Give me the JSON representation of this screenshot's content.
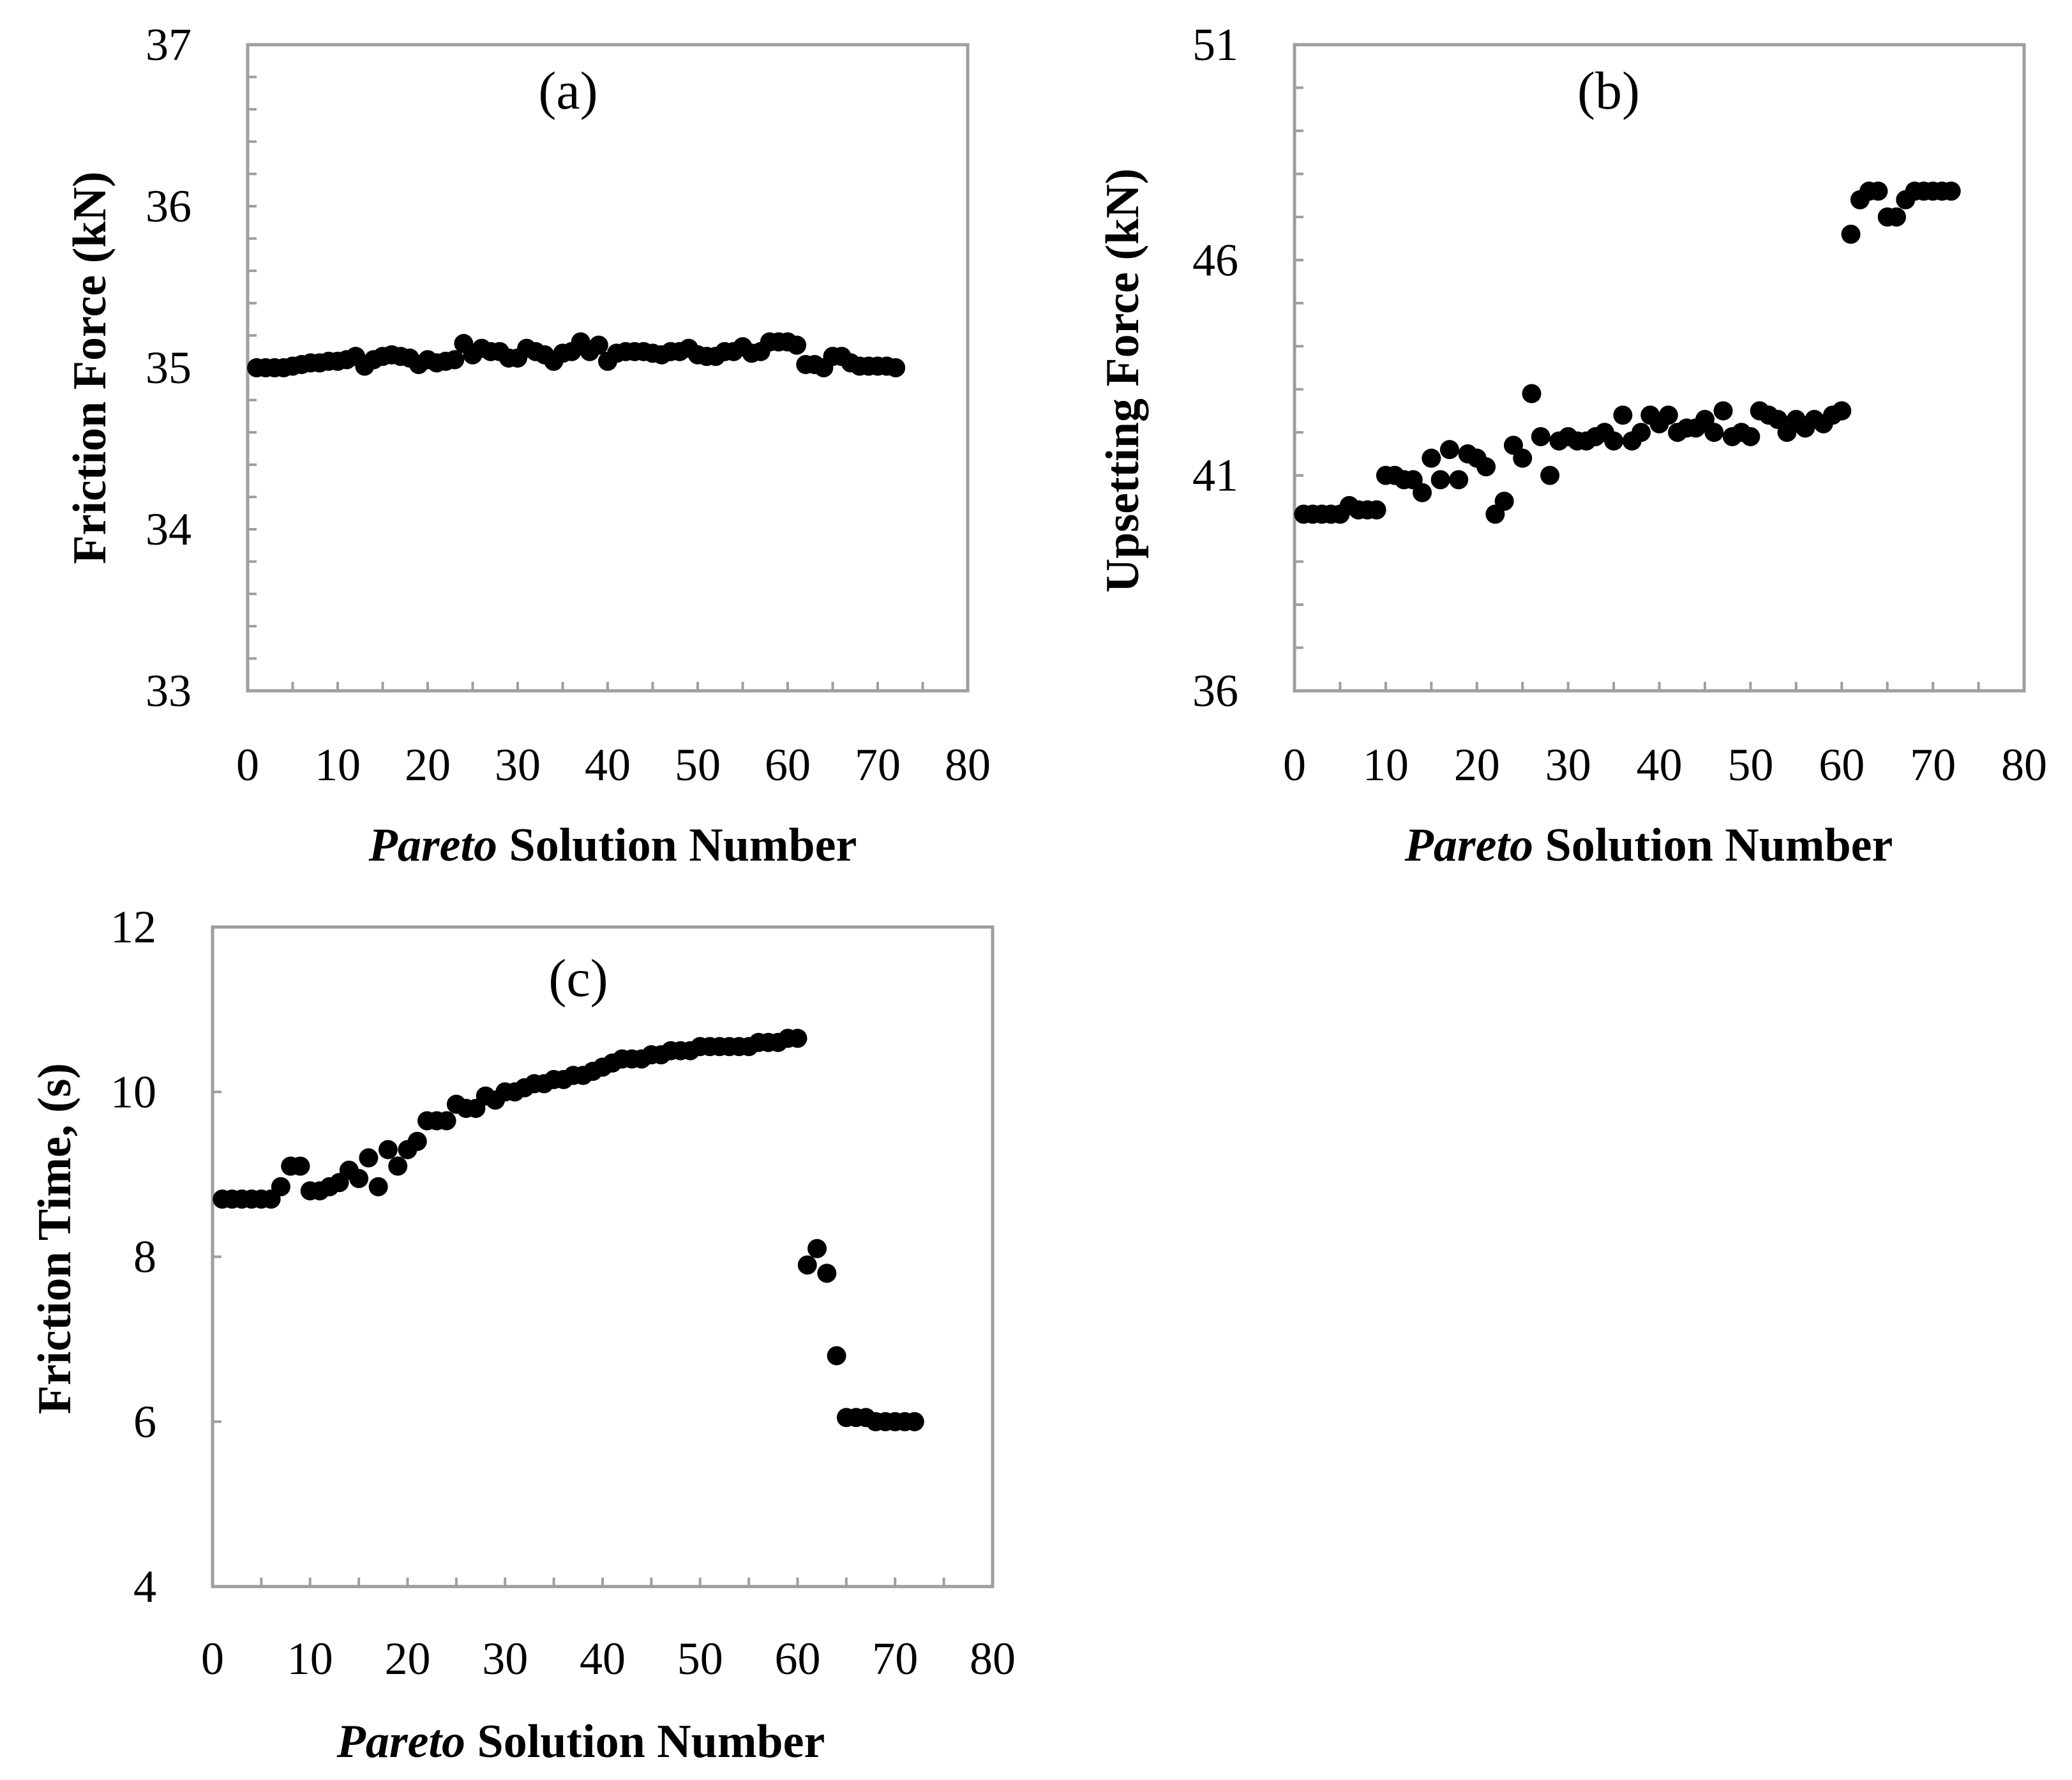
{
  "chart_data": [
    {
      "id": "a",
      "type": "scatter",
      "panel_label": "(a)",
      "ylabel": "Friction Force (kN)",
      "xlabel_italic": "Pareto",
      "xlabel_rest": " Solution Number",
      "xlim": [
        0,
        80
      ],
      "ylim": [
        33,
        37
      ],
      "xticks": [
        0,
        10,
        20,
        30,
        40,
        50,
        60,
        70,
        80
      ],
      "yticks": [
        33,
        34,
        35,
        36,
        37
      ],
      "yminor_step": 0.2,
      "grid": false,
      "x": [
        1,
        2,
        3,
        4,
        5,
        6,
        7,
        8,
        9,
        10,
        11,
        12,
        13,
        14,
        15,
        16,
        17,
        18,
        19,
        20,
        21,
        22,
        23,
        24,
        25,
        26,
        27,
        28,
        29,
        30,
        31,
        32,
        33,
        34,
        35,
        36,
        37,
        38,
        39,
        40,
        41,
        42,
        43,
        44,
        45,
        46,
        47,
        48,
        49,
        50,
        51,
        52,
        53,
        54,
        55,
        56,
        57,
        58,
        59,
        60,
        61,
        62,
        63,
        64,
        65,
        66,
        67,
        68,
        69,
        70,
        71,
        72
      ],
      "y": [
        35.0,
        35.0,
        35.0,
        35.0,
        35.01,
        35.02,
        35.03,
        35.03,
        35.04,
        35.04,
        35.05,
        35.07,
        35.01,
        35.05,
        35.07,
        35.08,
        35.07,
        35.06,
        35.02,
        35.05,
        35.03,
        35.04,
        35.05,
        35.15,
        35.08,
        35.12,
        35.1,
        35.1,
        35.06,
        35.06,
        35.12,
        35.1,
        35.08,
        35.04,
        35.09,
        35.1,
        35.16,
        35.1,
        35.14,
        35.04,
        35.09,
        35.1,
        35.1,
        35.1,
        35.09,
        35.08,
        35.1,
        35.1,
        35.12,
        35.08,
        35.07,
        35.07,
        35.1,
        35.1,
        35.13,
        35.09,
        35.1,
        35.16,
        35.16,
        35.16,
        35.14,
        35.02,
        35.02,
        35.0,
        35.07,
        35.07,
        35.03,
        35.01,
        35.01,
        35.01,
        35.01,
        35.0
      ]
    },
    {
      "id": "b",
      "type": "scatter",
      "panel_label": "(b)",
      "ylabel": "Upsetting Force (kN)",
      "xlabel_italic": "Pareto",
      "xlabel_rest": " Solution Number",
      "xlim": [
        0,
        80
      ],
      "ylim": [
        36,
        51
      ],
      "xticks": [
        0,
        10,
        20,
        30,
        40,
        50,
        60,
        70,
        80
      ],
      "yticks": [
        36,
        41,
        46,
        51
      ],
      "yminor_step": 1,
      "grid": false,
      "x": [
        1,
        2,
        3,
        4,
        5,
        6,
        7,
        8,
        9,
        10,
        11,
        12,
        13,
        14,
        15,
        16,
        17,
        18,
        19,
        20,
        21,
        22,
        23,
        24,
        25,
        26,
        27,
        28,
        29,
        30,
        31,
        32,
        33,
        34,
        35,
        36,
        37,
        38,
        39,
        40,
        41,
        42,
        43,
        44,
        45,
        46,
        47,
        48,
        49,
        50,
        51,
        52,
        53,
        54,
        55,
        56,
        57,
        58,
        59,
        60,
        61,
        62,
        63,
        64,
        65,
        66,
        67,
        68,
        69,
        70,
        71,
        72
      ],
      "y": [
        40.1,
        40.1,
        40.1,
        40.1,
        40.1,
        40.3,
        40.2,
        40.2,
        40.2,
        41.0,
        41.0,
        40.9,
        40.9,
        40.6,
        41.4,
        40.9,
        41.6,
        40.9,
        41.5,
        41.4,
        41.2,
        40.1,
        40.4,
        41.7,
        41.4,
        42.9,
        41.9,
        41.0,
        41.8,
        41.9,
        41.8,
        41.8,
        41.9,
        42.0,
        41.8,
        42.4,
        41.8,
        42.0,
        42.4,
        42.2,
        42.4,
        42.0,
        42.1,
        42.1,
        42.3,
        42.0,
        42.5,
        41.9,
        42.0,
        41.9,
        42.5,
        42.4,
        42.3,
        42.0,
        42.3,
        42.1,
        42.3,
        42.2,
        42.4,
        42.5,
        46.6,
        47.4,
        47.6,
        47.6,
        47.0,
        47.0,
        47.4,
        47.6,
        47.6,
        47.6,
        47.6,
        47.6
      ]
    },
    {
      "id": "c",
      "type": "scatter",
      "panel_label": "(c)",
      "ylabel": "Friction Time, (s)",
      "xlabel_italic": "Pareto",
      "xlabel_rest": " Solution Number",
      "xlim": [
        0,
        80
      ],
      "ylim": [
        4,
        12
      ],
      "xticks": [
        0,
        10,
        20,
        30,
        40,
        50,
        60,
        70,
        80
      ],
      "yticks": [
        4,
        6,
        8,
        10,
        12
      ],
      "yminor_step": null,
      "grid": false,
      "x": [
        1,
        2,
        3,
        4,
        5,
        6,
        7,
        8,
        9,
        10,
        11,
        12,
        13,
        14,
        15,
        16,
        17,
        18,
        19,
        20,
        21,
        22,
        23,
        24,
        25,
        26,
        27,
        28,
        29,
        30,
        31,
        32,
        33,
        34,
        35,
        36,
        37,
        38,
        39,
        40,
        41,
        42,
        43,
        44,
        45,
        46,
        47,
        48,
        49,
        50,
        51,
        52,
        53,
        54,
        55,
        56,
        57,
        58,
        59,
        60,
        61,
        62,
        63,
        64,
        65,
        66,
        67,
        68,
        69,
        70,
        71,
        72
      ],
      "y": [
        8.7,
        8.7,
        8.7,
        8.7,
        8.7,
        8.7,
        8.85,
        9.1,
        9.1,
        8.8,
        8.8,
        8.85,
        8.9,
        9.05,
        8.95,
        9.2,
        8.85,
        9.3,
        9.1,
        9.3,
        9.4,
        9.65,
        9.65,
        9.65,
        9.85,
        9.8,
        9.8,
        9.95,
        9.9,
        10.0,
        10.0,
        10.05,
        10.1,
        10.1,
        10.15,
        10.15,
        10.2,
        10.2,
        10.25,
        10.3,
        10.35,
        10.4,
        10.4,
        10.4,
        10.45,
        10.45,
        10.5,
        10.5,
        10.5,
        10.55,
        10.55,
        10.55,
        10.55,
        10.55,
        10.55,
        10.6,
        10.6,
        10.6,
        10.65,
        10.65,
        7.9,
        8.1,
        7.8,
        6.8,
        6.05,
        6.05,
        6.05,
        6.0,
        6.0,
        6.0,
        6.0,
        6.0
      ]
    }
  ]
}
